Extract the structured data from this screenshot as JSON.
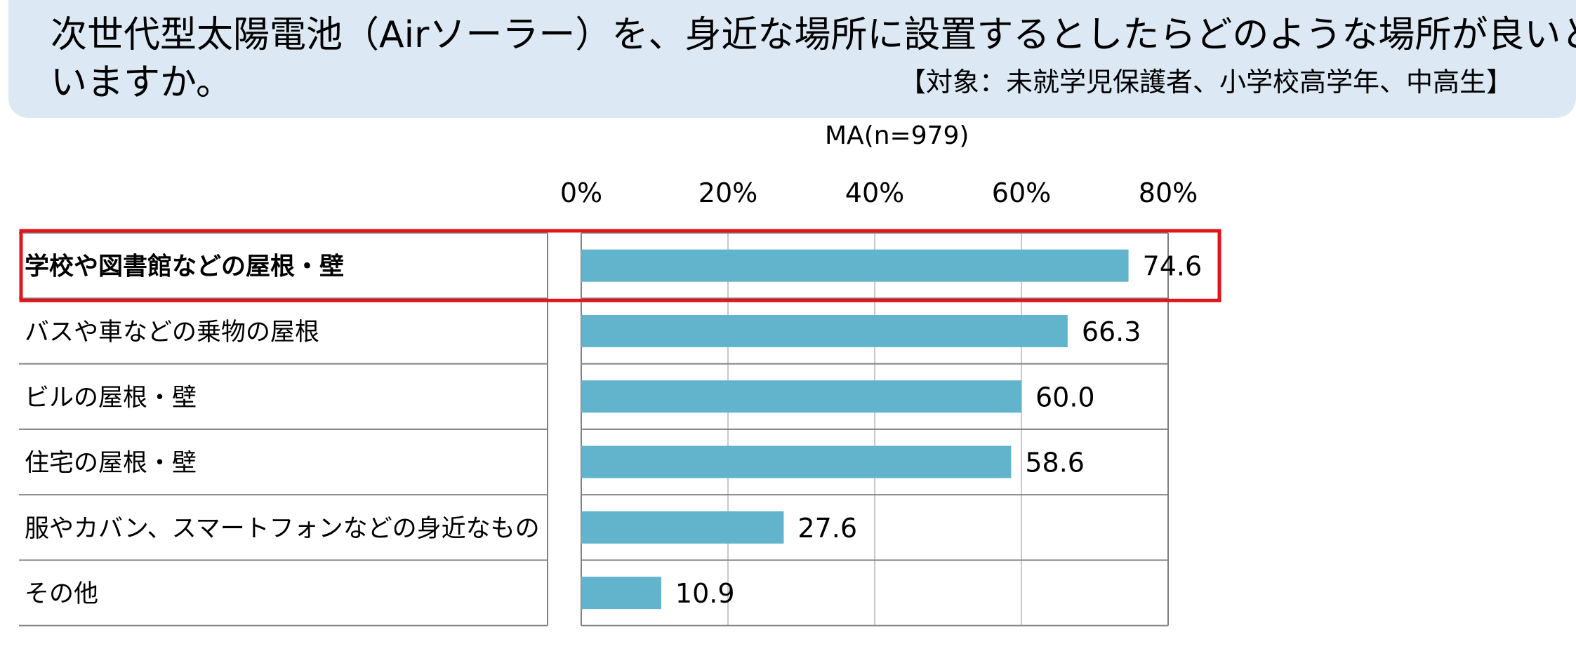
{
  "header": {
    "title_line1": "次世代型太陽電池（Airソーラー）を、身近な場所に設置するとしたらどのような場所が良いと思",
    "title_line2": "いますか。",
    "target": "【対象：未就学児保護者、小学校高学年、中高生】",
    "background_color": "#dce9f5"
  },
  "sample_note": "MA(n=979)",
  "chart_data": {
    "type": "bar",
    "orientation": "horizontal",
    "categories": [
      "学校や図書館などの屋根・壁",
      "バスや車などの乗物の屋根",
      "ビルの屋根・壁",
      "住宅の屋根・壁",
      "服やカバン、スマートフォンなどの身近なもの",
      "その他"
    ],
    "values": [
      74.6,
      66.3,
      60.0,
      58.6,
      27.6,
      10.9
    ],
    "value_labels": [
      "74.6",
      "66.3",
      "60.0",
      "58.6",
      "27.6",
      "10.9"
    ],
    "xlim": [
      0,
      80
    ],
    "ticks": [
      0,
      20,
      40,
      60,
      80
    ],
    "tick_labels": [
      "0%",
      "20%",
      "40%",
      "60%",
      "80%"
    ],
    "axis_position": "top",
    "grid": true,
    "bar_color": "#62b4cc",
    "highlight_index": 0,
    "highlight_color": "#e0141b"
  }
}
